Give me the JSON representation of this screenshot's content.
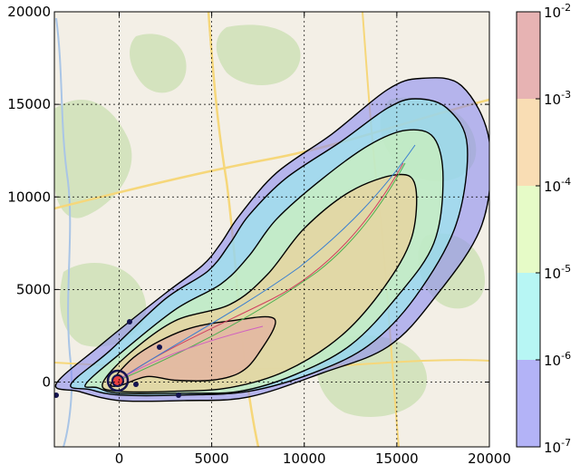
{
  "chart_data": {
    "type": "contour",
    "xlim": [
      -3500,
      20000
    ],
    "ylim": [
      -3500,
      20000
    ],
    "x_ticks": [
      "0",
      "5000",
      "10000",
      "15000",
      "20000"
    ],
    "x_tick_values": [
      0,
      5000,
      10000,
      15000,
      20000
    ],
    "y_ticks": [
      "0",
      "5000",
      "10000",
      "15000",
      "20000"
    ],
    "y_tick_values": [
      0,
      5000,
      10000,
      15000,
      20000
    ],
    "grid": true,
    "background": "map",
    "colorbar": {
      "scale": "log",
      "levels": [
        {
          "base": "10",
          "exp": "-7",
          "value": 1e-07
        },
        {
          "base": "10",
          "exp": "-6",
          "value": 1e-06
        },
        {
          "base": "10",
          "exp": "-5",
          "value": 1e-05
        },
        {
          "base": "10",
          "exp": "-4",
          "value": 0.0001
        },
        {
          "base": "10",
          "exp": "-3",
          "value": 0.001
        },
        {
          "base": "10",
          "exp": "-2",
          "value": 0.01
        }
      ],
      "bands": [
        {
          "from": 1e-07,
          "to": 1e-06,
          "color": "#b3b3f7"
        },
        {
          "from": 1e-06,
          "to": 1e-05,
          "color": "#b7f6f4"
        },
        {
          "from": 1e-05,
          "to": 0.0001,
          "color": "#e6fbc7"
        },
        {
          "from": 0.0001,
          "to": 0.001,
          "color": "#f9ddb4"
        },
        {
          "from": 0.001,
          "to": 0.01,
          "color": "#e7b3b3"
        }
      ]
    },
    "contours": [
      {
        "level": 1e-07,
        "fill": "#8c8cf0",
        "points": [
          [
            -3400,
            -100
          ],
          [
            -1000,
            2000
          ],
          [
            2500,
            4800
          ],
          [
            4500,
            6300
          ],
          [
            5500,
            7500
          ],
          [
            6500,
            9000
          ],
          [
            8500,
            11300
          ],
          [
            11500,
            13400
          ],
          [
            14500,
            15800
          ],
          [
            16300,
            16400
          ],
          [
            18500,
            16000
          ],
          [
            20000,
            13000
          ],
          [
            19600,
            8500
          ],
          [
            17000,
            4500
          ],
          [
            14500,
            1900
          ],
          [
            11000,
            500
          ],
          [
            7000,
            -800
          ],
          [
            3500,
            -1000
          ],
          [
            0,
            -1000
          ],
          [
            -2200,
            -500
          ]
        ]
      },
      {
        "level": 1e-06,
        "fill": "#9af1ee",
        "points": [
          [
            -2600,
            -100
          ],
          [
            -500,
            1700
          ],
          [
            2500,
            4500
          ],
          [
            4800,
            6000
          ],
          [
            6000,
            7500
          ],
          [
            7000,
            9000
          ],
          [
            9000,
            11000
          ],
          [
            12000,
            13000
          ],
          [
            14500,
            14800
          ],
          [
            16000,
            15300
          ],
          [
            17700,
            14800
          ],
          [
            18800,
            12800
          ],
          [
            18200,
            8500
          ],
          [
            16000,
            4600
          ],
          [
            13500,
            2000
          ],
          [
            10500,
            500
          ],
          [
            7000,
            -500
          ],
          [
            3500,
            -700
          ],
          [
            0,
            -700
          ],
          [
            -1600,
            -400
          ]
        ]
      },
      {
        "level": 1e-05,
        "fill": "#d8f7b0",
        "points": [
          [
            -1800,
            -100
          ],
          [
            0,
            1500
          ],
          [
            3000,
            3900
          ],
          [
            5500,
            5300
          ],
          [
            7000,
            6800
          ],
          [
            8500,
            8800
          ],
          [
            11000,
            11000
          ],
          [
            13500,
            12800
          ],
          [
            15500,
            13600
          ],
          [
            17000,
            13200
          ],
          [
            17500,
            11000
          ],
          [
            17000,
            7500
          ],
          [
            15000,
            4600
          ],
          [
            12500,
            2000
          ],
          [
            9500,
            400
          ],
          [
            6500,
            -500
          ],
          [
            3500,
            -600
          ],
          [
            0,
            -600
          ],
          [
            -1200,
            -300
          ]
        ]
      },
      {
        "level": 0.0001,
        "fill": "#f5cb90",
        "points": [
          [
            -900,
            -100
          ],
          [
            500,
            1500
          ],
          [
            3000,
            3300
          ],
          [
            6000,
            4200
          ],
          [
            8000,
            5800
          ],
          [
            10000,
            8300
          ],
          [
            12500,
            10300
          ],
          [
            15000,
            11200
          ],
          [
            16000,
            10600
          ],
          [
            15800,
            7800
          ],
          [
            14300,
            5100
          ],
          [
            12000,
            2500
          ],
          [
            9000,
            600
          ],
          [
            6000,
            -300
          ],
          [
            3000,
            -500
          ],
          [
            0,
            -500
          ]
        ]
      },
      {
        "level": 0.001,
        "fill": "#e5a8a0",
        "points": [
          [
            -400,
            0
          ],
          [
            1000,
            1500
          ],
          [
            3500,
            2800
          ],
          [
            6000,
            3300
          ],
          [
            8400,
            3400
          ],
          [
            7500,
            1500
          ],
          [
            6500,
            500
          ],
          [
            5000,
            100
          ],
          [
            3000,
            100
          ],
          [
            1500,
            300
          ],
          [
            0,
            -200
          ]
        ]
      }
    ],
    "source_marker": {
      "x": 0,
      "y": 0,
      "color": "#cc0000"
    }
  },
  "colors": {
    "outline": "#000000",
    "map_base": "#f3efe6",
    "map_green": "#c9dfb0",
    "road": "#f6d77a",
    "water": "#a9c5e6"
  }
}
